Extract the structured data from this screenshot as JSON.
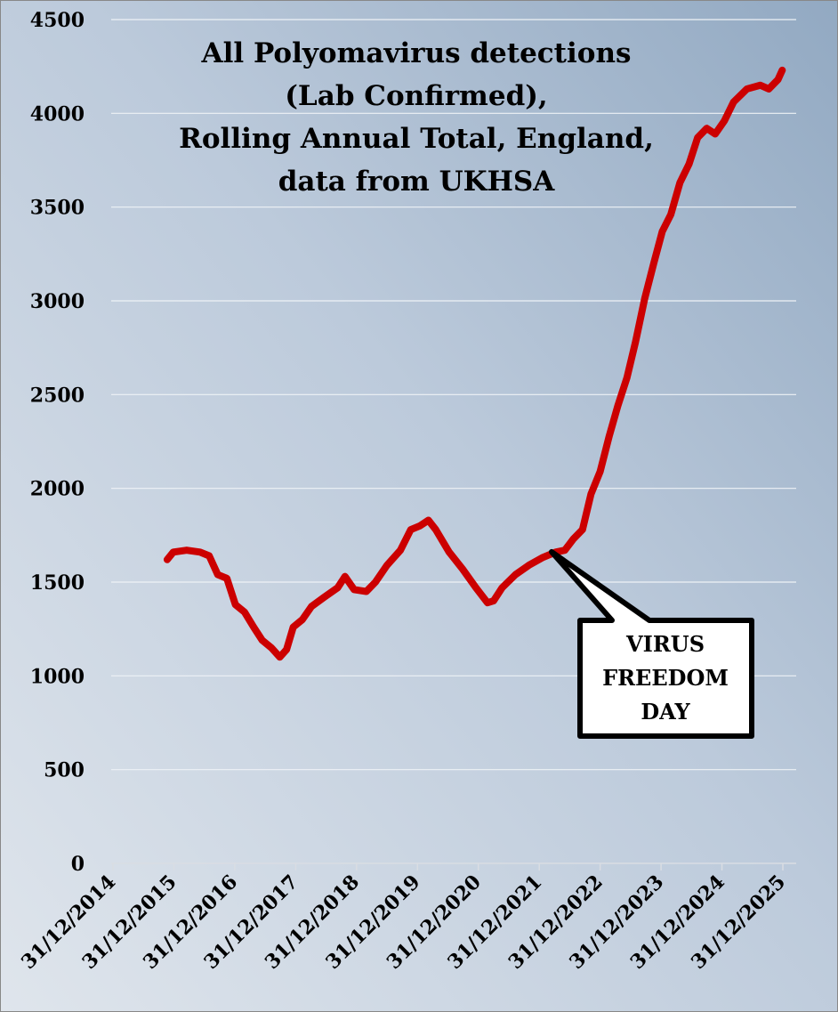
{
  "chart_data": {
    "type": "line",
    "title": [
      "All Polyomavirus detections",
      "(Lab Confirmed),",
      "Rolling Annual Total, England,",
      "data from UKHSA"
    ],
    "annotation": [
      "VIRUS",
      "FREEDOM",
      "DAY"
    ],
    "x": [
      2015.89,
      2015.99,
      2016.21,
      2016.43,
      2016.58,
      2016.72,
      2016.87,
      2017.01,
      2017.16,
      2017.31,
      2017.45,
      2017.6,
      2017.74,
      2017.85,
      2017.96,
      2018.11,
      2018.26,
      2018.47,
      2018.69,
      2018.81,
      2018.96,
      2019.16,
      2019.31,
      2019.5,
      2019.72,
      2019.89,
      2020.04,
      2020.18,
      2020.3,
      2020.52,
      2020.74,
      2020.96,
      2021.15,
      2021.25,
      2021.39,
      2021.61,
      2021.83,
      2022.05,
      2022.27,
      2022.42,
      2022.56,
      2022.71,
      2022.85,
      2023.0,
      2023.15,
      2023.29,
      2023.44,
      2023.58,
      2023.73,
      2023.88,
      2024.02,
      2024.16,
      2024.31,
      2024.46,
      2024.6,
      2024.75,
      2024.89,
      2025.04,
      2025.19,
      2025.41,
      2025.63,
      2025.77,
      2025.92,
      2025.99
    ],
    "series": [
      {
        "name": "Polyomavirus detections",
        "color": "#cc0000",
        "values": [
          1620,
          1660,
          1670,
          1660,
          1640,
          1540,
          1520,
          1380,
          1340,
          1260,
          1190,
          1150,
          1100,
          1140,
          1260,
          1300,
          1370,
          1420,
          1470,
          1530,
          1460,
          1450,
          1500,
          1590,
          1670,
          1780,
          1800,
          1830,
          1780,
          1660,
          1570,
          1470,
          1390,
          1400,
          1470,
          1540,
          1590,
          1630,
          1660,
          1670,
          1730,
          1780,
          1970,
          2090,
          2280,
          2440,
          2590,
          2780,
          3010,
          3200,
          3370,
          3460,
          3630,
          3730,
          3870,
          3920,
          3890,
          3960,
          4060,
          4130,
          4150,
          4130,
          4180,
          4230
        ]
      }
    ],
    "xlim": [
      2015,
      2026
    ],
    "xticks": [
      {
        "value": 2015,
        "label": "31/12/2014"
      },
      {
        "value": 2016,
        "label": "31/12/2015"
      },
      {
        "value": 2017,
        "label": "31/12/2016"
      },
      {
        "value": 2018,
        "label": "31/12/2017"
      },
      {
        "value": 2019,
        "label": "31/12/2018"
      },
      {
        "value": 2020,
        "label": "31/12/2019"
      },
      {
        "value": 2021,
        "label": "31/12/2020"
      },
      {
        "value": 2022,
        "label": "31/12/2021"
      },
      {
        "value": 2023,
        "label": "31/12/2022"
      },
      {
        "value": 2024,
        "label": "31/12/2023"
      },
      {
        "value": 2025,
        "label": "31/12/2024"
      },
      {
        "value": 2026,
        "label": "31/12/2025"
      }
    ],
    "ylim": [
      0,
      4500
    ],
    "yticks": [
      0,
      500,
      1000,
      1500,
      2000,
      2500,
      3000,
      3500,
      4000,
      4500
    ],
    "grid": true
  }
}
